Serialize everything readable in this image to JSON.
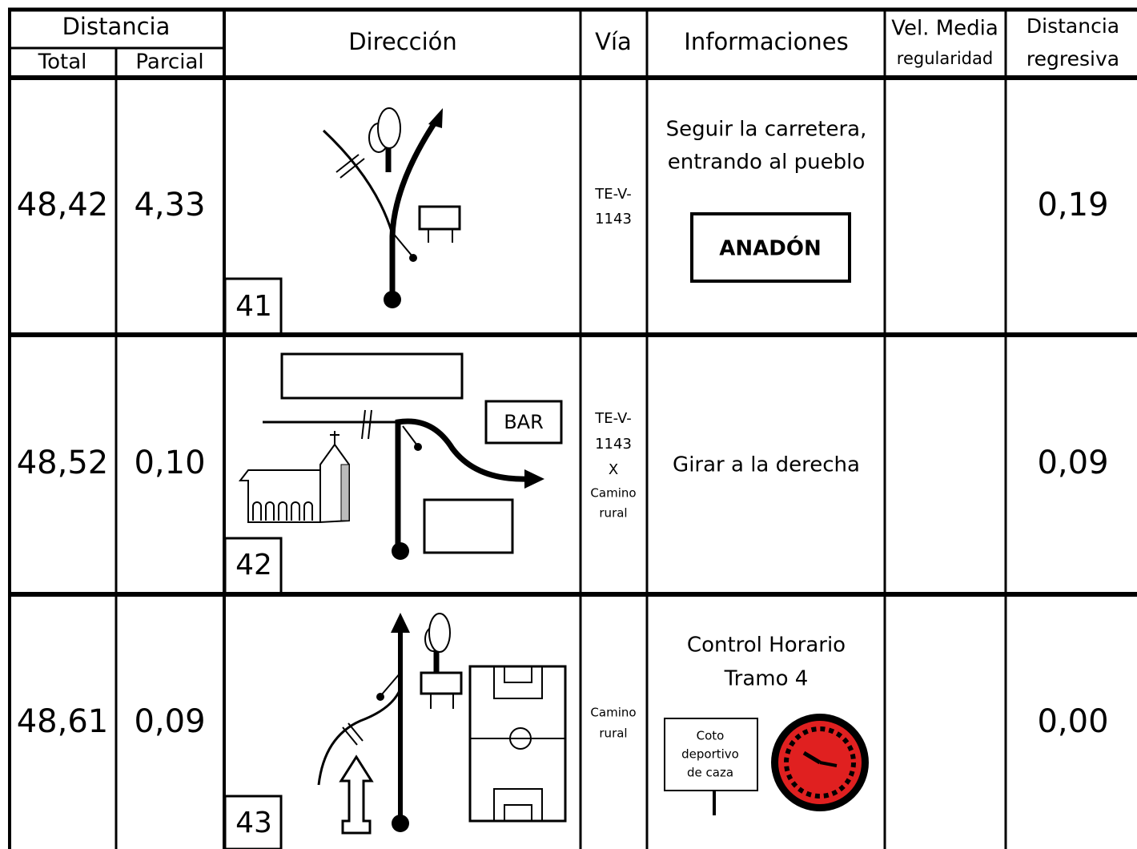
{
  "header": {
    "distancia": "Distancia",
    "total": "Total",
    "parcial": "Parcial",
    "direccion": "Dirección",
    "via": "Vía",
    "informaciones": "Informaciones",
    "vel_media": "Vel. Media",
    "regularidad": "regularidad",
    "distancia_regresiva": [
      "Distancia",
      "regresiva"
    ]
  },
  "rows": [
    {
      "total": "48,42",
      "parcial": "4,33",
      "number": "41",
      "via": [
        "TE-V-",
        "1143"
      ],
      "info": [
        "Seguir la carretera,",
        "entrando al pueblo"
      ],
      "sign": "ANADÓN",
      "regresiva": "0,19"
    },
    {
      "total": "48,52",
      "parcial": "0,10",
      "number": "42",
      "via": [
        "TE-V-",
        "1143",
        "X",
        "Camino",
        "rural"
      ],
      "info": [
        "Girar a la derecha"
      ],
      "diagram_sign": "BAR",
      "regresiva": "0,09"
    },
    {
      "total": "48,61",
      "parcial": "0,09",
      "number": "43",
      "via": [
        "Camino",
        "rural"
      ],
      "info": [
        "Control Horario",
        "Tramo 4"
      ],
      "sign_lines": [
        "Coto",
        "deportivo",
        "de caza"
      ],
      "regresiva": "0,00"
    }
  ]
}
